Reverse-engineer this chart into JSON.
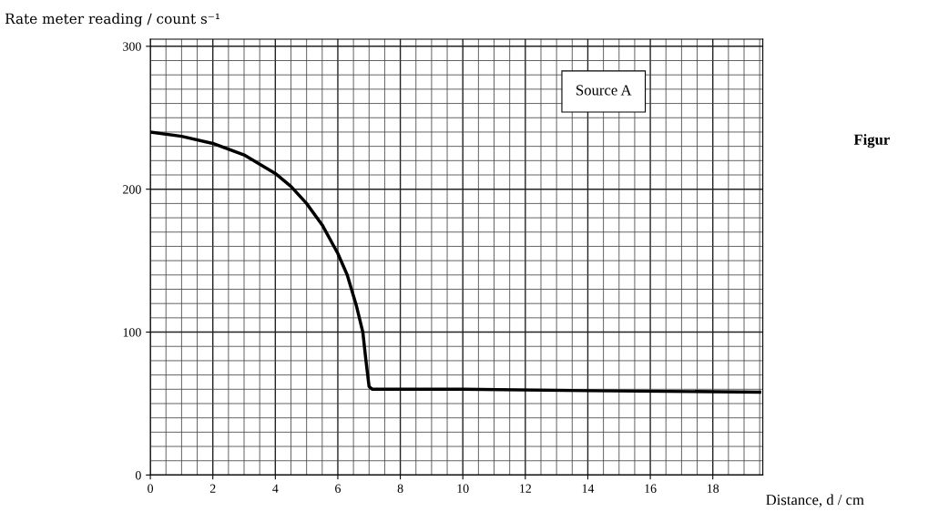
{
  "chart_data": {
    "type": "line",
    "xlabel": "Distance, d / cm",
    "ylabel": "Rate meter reading / count s⁻¹",
    "x": [
      0,
      1,
      2,
      3,
      4,
      4.5,
      5,
      5.5,
      6,
      6.3,
      6.6,
      6.8,
      6.9,
      7,
      7.1,
      10,
      14,
      19.5
    ],
    "series": [
      {
        "color": "#000000",
        "values": [
          240,
          237,
          232,
          224,
          211,
          202,
          190,
          175,
          155,
          140,
          118,
          100,
          80,
          62,
          60,
          60,
          59,
          58
        ]
      }
    ],
    "xlim": [
      0,
      19.6
    ],
    "ylim": [
      0,
      305
    ],
    "xticks": [
      0,
      2,
      4,
      6,
      8,
      10,
      12,
      14,
      16,
      18
    ],
    "yticks": [
      0,
      100,
      200,
      300
    ],
    "grid": true,
    "marker": "none",
    "line_style": "solid",
    "annotations": [
      "Source A",
      "Figur"
    ]
  }
}
